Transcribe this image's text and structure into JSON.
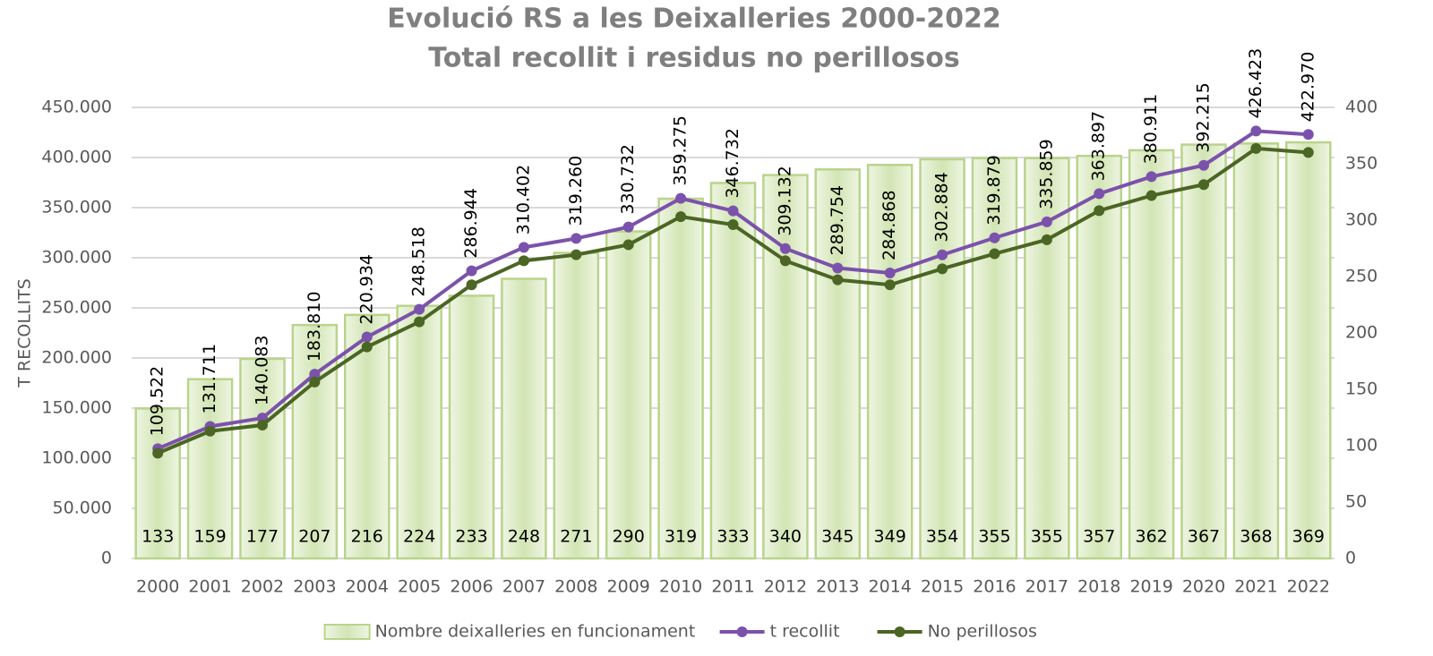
{
  "chart_data": {
    "type": "combo",
    "title": "Evolució RS a les Deixalleries 2000-2022",
    "subtitle": "Total recollit i residus no perillosos",
    "ylabel": "T RECOLLITS",
    "categories": [
      "2000",
      "2001",
      "2002",
      "2003",
      "2004",
      "2005",
      "2006",
      "2007",
      "2008",
      "2009",
      "2010",
      "2011",
      "2012",
      "2013",
      "2014",
      "2015",
      "2016",
      "2017",
      "2018",
      "2019",
      "2020",
      "2021",
      "2022"
    ],
    "series": [
      {
        "name": "Nombre deixalleries en funcionament",
        "type": "bar",
        "axis": "y2",
        "color": "#b9d48c",
        "values": [
          133,
          159,
          177,
          207,
          216,
          224,
          233,
          248,
          271,
          290,
          319,
          333,
          340,
          345,
          349,
          354,
          355,
          355,
          357,
          362,
          367,
          368,
          369
        ]
      },
      {
        "name": "t recollit",
        "type": "line",
        "color": "#7b52ab",
        "values": [
          109522,
          131711,
          140083,
          183810,
          220934,
          248518,
          286944,
          310402,
          319260,
          330732,
          359275,
          346732,
          309132,
          289754,
          284868,
          302884,
          319879,
          335859,
          363897,
          380911,
          392215,
          426423,
          422970
        ],
        "value_labels": [
          "109.522",
          "131.711",
          "140.083",
          "183.810",
          "220.934",
          "248.518",
          "286.944",
          "310.402",
          "319.260",
          "330.732",
          "359.275",
          "346.732",
          "309.132",
          "289.754",
          "284.868",
          "302.884",
          "319.879",
          "335.859",
          "363.897",
          "380.911",
          "392.215",
          "426.423",
          "422.970"
        ]
      },
      {
        "name": "No perillosos",
        "type": "line",
        "color": "#4b6524",
        "values": [
          105000,
          127000,
          133000,
          176000,
          211000,
          236000,
          273000,
          297000,
          303000,
          313000,
          341000,
          333000,
          297000,
          278000,
          273000,
          289000,
          304000,
          318000,
          347000,
          362000,
          373000,
          409000,
          405000
        ]
      }
    ],
    "ylim": [
      0,
      450000
    ],
    "yticks": [
      0,
      {
        "value": 50000,
        "label": "50.000"
      },
      {
        "value": 100000,
        "label": "100.000"
      },
      {
        "value": 150000,
        "label": "150.000"
      },
      {
        "value": 200000,
        "label": "200.000"
      },
      {
        "value": 250000,
        "label": "250.000"
      },
      {
        "value": 300000,
        "label": "300.000"
      },
      {
        "value": 350000,
        "label": "350.000"
      },
      {
        "value": 400000,
        "label": "400.000"
      },
      {
        "value": 450000,
        "label": "450.000"
      }
    ],
    "y2lim": [
      0,
      400
    ],
    "y2ticks": [
      0,
      50,
      100,
      150,
      200,
      250,
      300,
      350,
      400
    ],
    "grid": true,
    "legend": "bottom"
  }
}
